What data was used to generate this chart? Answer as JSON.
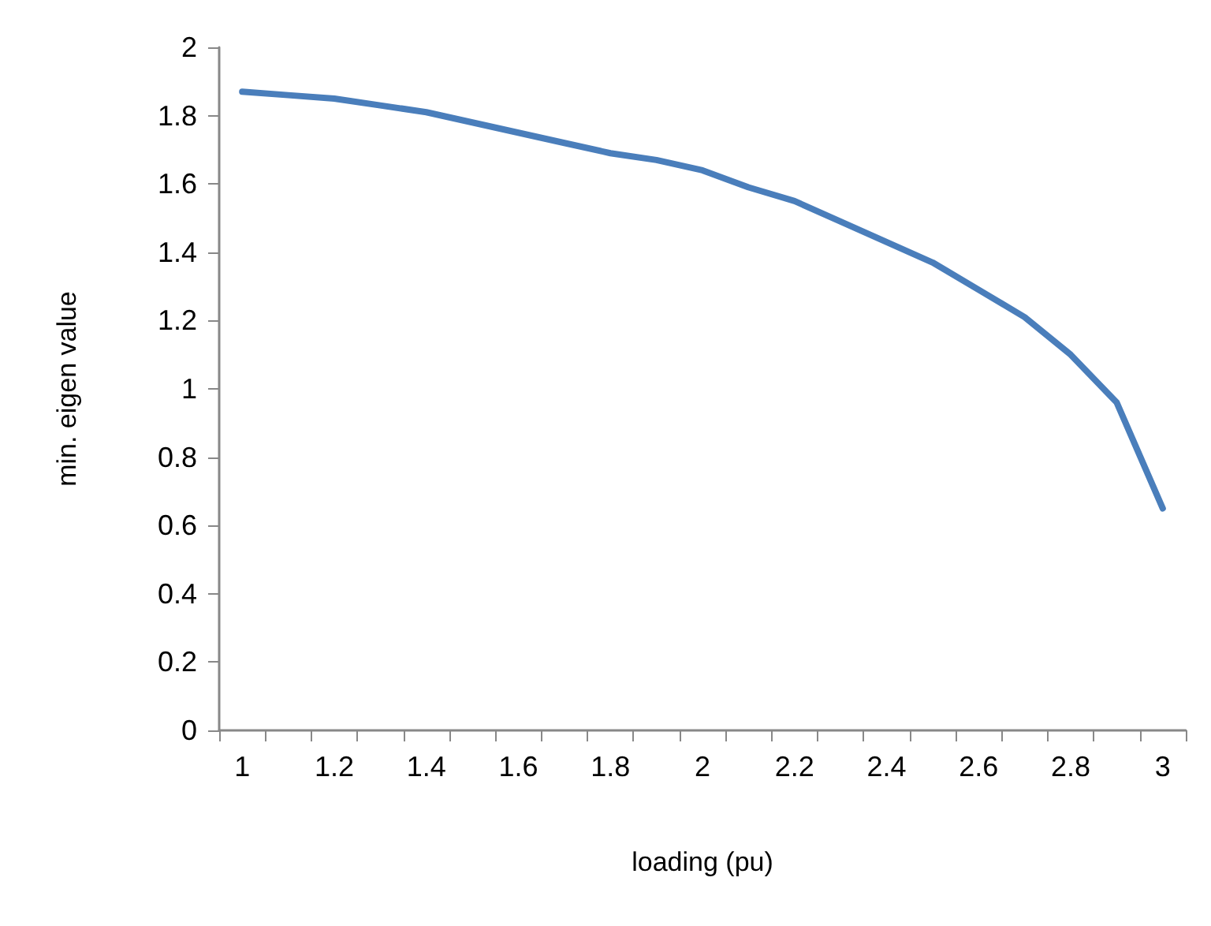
{
  "chart_data": {
    "type": "line",
    "xlabel": "loading (pu)",
    "ylabel": "min. eigen value",
    "categories": [
      "1",
      null,
      "1.2",
      null,
      "1.4",
      null,
      "1.6",
      null,
      "1.8",
      null,
      "2",
      null,
      "2.2",
      null,
      "2.4",
      null,
      "2.6",
      null,
      "2.8",
      null,
      "3"
    ],
    "series": [
      {
        "color": "#4a7ebb",
        "values": [
          1.87,
          1.86,
          1.85,
          1.83,
          1.81,
          1.78,
          1.75,
          1.72,
          1.69,
          1.67,
          1.64,
          1.59,
          1.55,
          1.49,
          1.43,
          1.37,
          1.29,
          1.21,
          1.1,
          0.96,
          0.65
        ]
      }
    ],
    "ylim": [
      0,
      2
    ],
    "yticks": [
      0,
      0.2,
      0.4,
      0.6,
      0.8,
      1,
      1.2,
      1.4,
      1.6,
      1.8,
      2
    ],
    "grid": false,
    "marker": "none",
    "line_style": "solid"
  }
}
